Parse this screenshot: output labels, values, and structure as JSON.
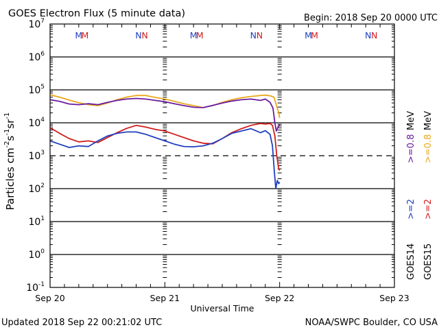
{
  "chart_data": {
    "type": "line",
    "title": "GOES Electron Flux (5 minute data)",
    "begin_label": "Begin: 2018 Sep 20 0000 UTC",
    "xlabel": "Universal Time",
    "ylabel": "Particles cm",
    "ylabel_units": [
      "-2",
      "s",
      "-1",
      "sr",
      "-1"
    ],
    "xlim_hours": [
      0,
      72
    ],
    "ylim_log10": [
      -1,
      7
    ],
    "x_ticks": [
      {
        "hour": 0,
        "label": "Sep 20"
      },
      {
        "hour": 24,
        "label": "Sep 21"
      },
      {
        "hour": 48,
        "label": "Sep 22"
      },
      {
        "hour": 72,
        "label": "Sep 23"
      }
    ],
    "y_ticks": [
      {
        "exp": 7,
        "label": "7"
      },
      {
        "exp": 6,
        "label": "6"
      },
      {
        "exp": 5,
        "label": "5"
      },
      {
        "exp": 4,
        "label": "4"
      },
      {
        "exp": 3,
        "label": "3"
      },
      {
        "exp": 2,
        "label": "2"
      },
      {
        "exp": 1,
        "label": "1"
      },
      {
        "exp": 0,
        "label": "0"
      },
      {
        "exp": -1,
        "label": "-1"
      }
    ],
    "y_tick_base": "10",
    "threshold_log10": 3,
    "markers": [
      {
        "hour": 6,
        "text": "M",
        "color": "#1f3fbf"
      },
      {
        "hour": 7.3,
        "text": "M",
        "color": "#d01c1c"
      },
      {
        "hour": 18.5,
        "text": "N",
        "color": "#1f3fbf"
      },
      {
        "hour": 19.8,
        "text": "N",
        "color": "#d01c1c"
      },
      {
        "hour": 30,
        "text": "M",
        "color": "#1f3fbf"
      },
      {
        "hour": 31.3,
        "text": "M",
        "color": "#d01c1c"
      },
      {
        "hour": 42.5,
        "text": "N",
        "color": "#1f3fbf"
      },
      {
        "hour": 43.8,
        "text": "N",
        "color": "#d01c1c"
      },
      {
        "hour": 54,
        "text": "M",
        "color": "#1f3fbf"
      },
      {
        "hour": 55.3,
        "text": "M",
        "color": "#d01c1c"
      },
      {
        "hour": 66.5,
        "text": "N",
        "color": "#1f3fbf"
      },
      {
        "hour": 67.8,
        "text": "N",
        "color": "#d01c1c"
      }
    ],
    "legend": {
      "placement": "right",
      "satellites": [
        "GOES14",
        "GOES15"
      ],
      "entries": [
        {
          "sat": "GOES14",
          "text": ">=2",
          "color": "#1f3fbf"
        },
        {
          "sat": "GOES15",
          "text": ">=2",
          "color": "#d01c1c"
        },
        {
          "sat": "GOES14",
          "text": ">=0.8",
          "color": "#6a1aa0"
        },
        {
          "sat": "GOES15",
          "text": ">=0.8",
          "color": "#e8a818"
        }
      ],
      "unit": "MeV"
    },
    "series": [
      {
        "name": "GOES15 >=0.8 MeV",
        "color": "#e8a818",
        "hours": [
          0,
          2,
          4,
          6,
          8,
          10,
          12,
          14,
          16,
          18,
          20,
          22,
          24,
          26,
          28,
          30,
          32,
          34,
          36,
          38,
          40,
          42,
          44,
          45,
          46,
          46.8,
          47.3,
          47.8,
          48
        ],
        "log10": [
          4.85,
          4.78,
          4.69,
          4.61,
          4.55,
          4.52,
          4.6,
          4.7,
          4.78,
          4.83,
          4.83,
          4.77,
          4.72,
          4.65,
          4.58,
          4.52,
          4.46,
          4.52,
          4.62,
          4.7,
          4.76,
          4.8,
          4.83,
          4.84,
          4.82,
          4.78,
          4.55,
          4.3,
          4.15
        ]
      },
      {
        "name": "GOES14 >=0.8 MeV",
        "color": "#6a1aa0",
        "hours": [
          0,
          2,
          4,
          6,
          8,
          10,
          12,
          14,
          16,
          18,
          20,
          22,
          24,
          26,
          28,
          30,
          32,
          34,
          36,
          38,
          40,
          42,
          44,
          45,
          46,
          46.6,
          47.0,
          47.3,
          47.6,
          48
        ],
        "log10": [
          4.7,
          4.65,
          4.57,
          4.55,
          4.58,
          4.55,
          4.62,
          4.68,
          4.72,
          4.74,
          4.72,
          4.68,
          4.64,
          4.58,
          4.52,
          4.47,
          4.46,
          4.53,
          4.6,
          4.66,
          4.7,
          4.72,
          4.68,
          4.72,
          4.62,
          4.45,
          4.0,
          3.75,
          3.85,
          3.95
        ]
      },
      {
        "name": "GOES15 >=2 MeV",
        "color": "#d01c1c",
        "hours": [
          0,
          2,
          4,
          6,
          8,
          10,
          12,
          14,
          16,
          18,
          20,
          22,
          24,
          26,
          28,
          30,
          32,
          34,
          36,
          38,
          40,
          42,
          44,
          45,
          46,
          46.5,
          47.0,
          47.4,
          47.8,
          48
        ],
        "log10": [
          3.85,
          3.68,
          3.52,
          3.42,
          3.45,
          3.4,
          3.55,
          3.7,
          3.83,
          3.92,
          3.87,
          3.8,
          3.75,
          3.65,
          3.55,
          3.45,
          3.38,
          3.36,
          3.52,
          3.7,
          3.82,
          3.92,
          3.98,
          3.96,
          3.98,
          3.92,
          3.6,
          3.0,
          2.6,
          2.55
        ]
      },
      {
        "name": "GOES14 >=2 MeV",
        "color": "#1f3fbf",
        "hours": [
          0,
          2,
          4,
          6,
          8,
          10,
          12,
          14,
          16,
          18,
          20,
          22,
          24,
          26,
          28,
          30,
          32,
          34,
          36,
          38,
          40,
          42,
          44,
          45,
          46,
          46.5,
          46.9,
          47.2,
          47.5,
          47.8,
          48
        ],
        "log10": [
          3.45,
          3.35,
          3.25,
          3.3,
          3.28,
          3.45,
          3.6,
          3.68,
          3.72,
          3.72,
          3.65,
          3.55,
          3.45,
          3.35,
          3.28,
          3.27,
          3.3,
          3.38,
          3.52,
          3.68,
          3.75,
          3.82,
          3.7,
          3.76,
          3.65,
          3.3,
          2.5,
          2.0,
          2.25,
          2.15,
          2.2
        ]
      }
    ]
  },
  "footer": {
    "updated": "Updated 2018 Sep 22 00:21:02 UTC",
    "credit": "NOAA/SWPC Boulder, CO USA"
  }
}
